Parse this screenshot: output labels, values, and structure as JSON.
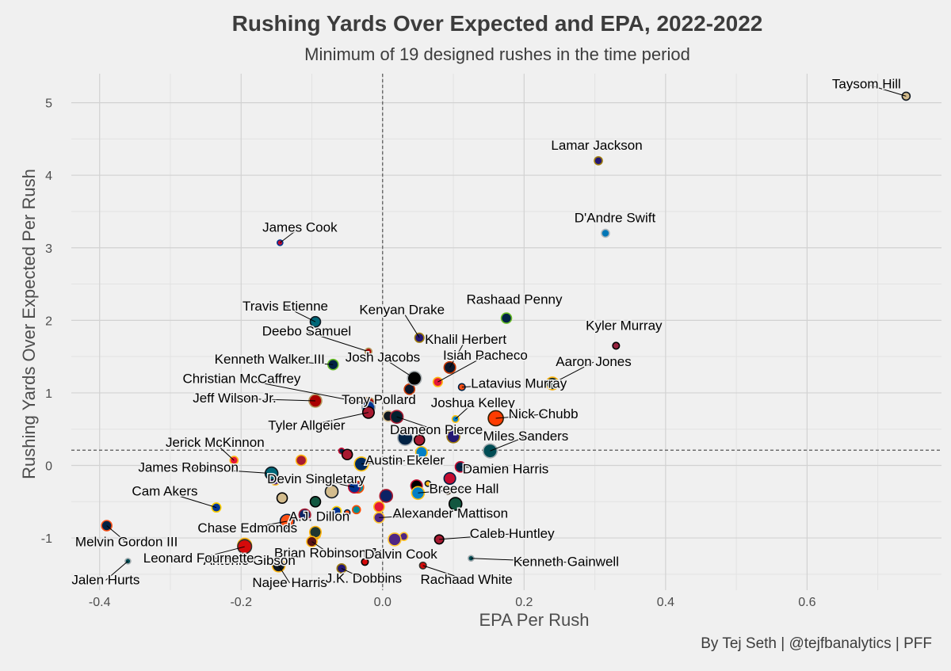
{
  "title": "Rushing Yards Over Expected and EPA, 2022-2022",
  "subtitle": "Minimum of 19 designed rushes in the time period",
  "caption": "By Tej Seth | @tejfbanalytics | PFF",
  "chart_data": {
    "type": "scatter",
    "xlabel": "EPA Per Rush",
    "ylabel": "Rushing Yards Over Expected Per Rush",
    "xlim": [
      -0.44,
      0.79
    ],
    "ylim": [
      -1.72,
      5.4
    ],
    "x_ticks": [
      -0.4,
      -0.2,
      0.0,
      0.2,
      0.4,
      0.6
    ],
    "x_tick_labels": [
      "-0.4",
      "-0.2",
      "0.0",
      "0.2",
      "0.4",
      "0.6"
    ],
    "y_ticks": [
      -1,
      0,
      1,
      2,
      3,
      4,
      5
    ],
    "y_tick_labels": [
      "-1",
      "0",
      "1",
      "2",
      "3",
      "4",
      "5"
    ],
    "grid": true,
    "mean_lines": {
      "x": 0.0,
      "y": 0.21
    },
    "labeled_points": [
      {
        "name": "Taysom Hill",
        "x": 0.74,
        "y": 5.09,
        "size": 4,
        "fill": "#D3BC8D",
        "stroke": "#101820",
        "lx": -50,
        "ly": -10
      },
      {
        "name": "Lamar Jackson",
        "x": 0.305,
        "y": 4.2,
        "size": 4,
        "fill": "#241773",
        "stroke": "#9E7C0C",
        "lx": -2,
        "ly": -14
      },
      {
        "name": "D'Andre Swift",
        "x": 0.315,
        "y": 3.2,
        "size": 4,
        "fill": "#0076B6",
        "stroke": "#B0B7BC",
        "lx": 12,
        "ly": -14
      },
      {
        "name": "James Cook",
        "x": -0.145,
        "y": 3.07,
        "size": 2,
        "fill": "#C60C30",
        "stroke": "#00338D",
        "lx": 25,
        "ly": -14
      },
      {
        "name": "Travis Etienne",
        "x": -0.095,
        "y": 1.98,
        "size": 6,
        "fill": "#006778",
        "stroke": "#101820",
        "lx": -38,
        "ly": -14
      },
      {
        "name": "Rashaad Penny",
        "x": 0.175,
        "y": 2.03,
        "size": 6,
        "fill": "#002244",
        "stroke": "#69BE28",
        "lx": 10,
        "ly": -18
      },
      {
        "name": "Kenyan Drake",
        "x": 0.052,
        "y": 1.76,
        "size": 5,
        "fill": "#241773",
        "stroke": "#9E7C0C",
        "lx": -22,
        "ly": -30
      },
      {
        "name": "Deebo Samuel",
        "x": -0.02,
        "y": 1.57,
        "size": 3,
        "fill": "#AA0000",
        "stroke": "#B3995D",
        "lx": -78,
        "ly": -20
      },
      {
        "name": "Khalil Herbert",
        "x": 0.095,
        "y": 1.35,
        "size": 7,
        "fill": "#0B162A",
        "stroke": "#C83803",
        "lx": 20,
        "ly": -30
      },
      {
        "name": "Kyler Murray",
        "x": 0.33,
        "y": 1.65,
        "size": 3,
        "fill": "#97233F",
        "stroke": "#000000",
        "lx": 10,
        "ly": -20
      },
      {
        "name": "Kenneth Walker III",
        "x": -0.07,
        "y": 1.39,
        "size": 6,
        "fill": "#002244",
        "stroke": "#69BE28",
        "lx": -80,
        "ly": -1
      },
      {
        "name": "Josh Jacobs",
        "x": 0.045,
        "y": 1.2,
        "size": 9,
        "fill": "#000000",
        "stroke": "#A5ACAF",
        "lx": -40,
        "ly": -21
      },
      {
        "name": "Isiah Pacheco",
        "x": 0.078,
        "y": 1.15,
        "size": 5,
        "fill": "#E31837",
        "stroke": "#FFB612",
        "lx": 60,
        "ly": -28
      },
      {
        "name": "Aaron Jones",
        "x": 0.24,
        "y": 1.13,
        "size": 8,
        "fill": "#203731",
        "stroke": "#FFB612",
        "lx": 52,
        "ly": -22
      },
      {
        "name": "Latavius Murray",
        "x": 0.112,
        "y": 1.08,
        "size": 3,
        "fill": "#FB4F14",
        "stroke": "#002244",
        "lx": 72,
        "ly": 1
      },
      {
        "name": "Christian McCaffrey",
        "x": -0.02,
        "y": 0.85,
        "size": 8,
        "fill": "#AA0000",
        "stroke": "#B3995D",
        "lx": -160,
        "ly": -26
      },
      {
        "name": "Jeff Wilson Jr.",
        "x": -0.095,
        "y": 0.89,
        "size": 8,
        "fill": "#AA0000",
        "stroke": "#B3995D",
        "lx": -102,
        "ly": 2
      },
      {
        "name": "Tony Pollard",
        "x": -0.02,
        "y": 0.8,
        "size": 8,
        "fill": "#003594",
        "stroke": "#869397",
        "lx": 13,
        "ly": -4
      },
      {
        "name": "Tyler Allgeier",
        "x": -0.02,
        "y": 0.73,
        "size": 7,
        "fill": "#A71930",
        "stroke": "#000000",
        "lx": -78,
        "ly": 22
      },
      {
        "name": "Joshua Kelley",
        "x": 0.103,
        "y": 0.64,
        "size": 3,
        "fill": "#0080C6",
        "stroke": "#FFC20E",
        "lx": 22,
        "ly": -15
      },
      {
        "name": "Nick Chubb",
        "x": 0.16,
        "y": 0.65,
        "size": 10,
        "fill": "#FF3C00",
        "stroke": "#311D00",
        "lx": 60,
        "ly": 0
      },
      {
        "name": "Dameon Pierce",
        "x": 0.02,
        "y": 0.67,
        "size": 8,
        "fill": "#03202F",
        "stroke": "#A71930",
        "lx": 50,
        "ly": 22
      },
      {
        "name": "Miles Sanders",
        "x": 0.152,
        "y": 0.2,
        "size": 9,
        "fill": "#004C54",
        "stroke": "#A5ACAF",
        "lx": 45,
        "ly": -13
      },
      {
        "name": "Jerick McKinnon",
        "x": -0.21,
        "y": 0.07,
        "size": 4,
        "fill": "#E31837",
        "stroke": "#FFB612",
        "lx": -24,
        "ly": -17
      },
      {
        "name": "Austin Ekeler",
        "x": -0.03,
        "y": 0.02,
        "size": 9,
        "fill": "#002A5E",
        "stroke": "#FFC20E",
        "lx": 55,
        "ly": 1
      },
      {
        "name": "Damien Harris",
        "x": 0.11,
        "y": -0.02,
        "size": 6,
        "fill": "#002244",
        "stroke": "#C60C30",
        "lx": 57,
        "ly": 8
      },
      {
        "name": "James Robinson",
        "x": -0.157,
        "y": -0.11,
        "size": 8,
        "fill": "#006778",
        "stroke": "#101820",
        "lx": -105,
        "ly": -2
      },
      {
        "name": "Devin Singletary",
        "x": -0.04,
        "y": -0.3,
        "size": 7,
        "fill": "#00338D",
        "stroke": "#C60C30",
        "lx": -48,
        "ly": -5
      },
      {
        "name": "Breece Hall",
        "x": 0.05,
        "y": -0.38,
        "size": 8,
        "fill": "#0080C6",
        "stroke": "#FFC20E",
        "lx": 58,
        "ly": 0
      },
      {
        "name": "Cam Akers",
        "x": -0.235,
        "y": -0.58,
        "size": 5,
        "fill": "#003594",
        "stroke": "#FFD100",
        "lx": -65,
        "ly": -15
      },
      {
        "name": "Alexander Mattison",
        "x": -0.005,
        "y": -0.72,
        "size": 6,
        "fill": "#4F2683",
        "stroke": "#FFC62F",
        "lx": 90,
        "ly": 0
      },
      {
        "name": "Melvin Gordon III",
        "x": -0.39,
        "y": -0.83,
        "size": 6,
        "fill": "#002244",
        "stroke": "#FB4F14",
        "lx": 25,
        "ly": 26
      },
      {
        "name": "Chase Edmonds",
        "x": -0.135,
        "y": -0.77,
        "size": 9,
        "fill": "#FB4F14",
        "stroke": "#002244",
        "lx": -50,
        "ly": 14
      },
      {
        "name": "A.J. Dillon",
        "x": -0.095,
        "y": -0.92,
        "size": 7,
        "fill": "#203731",
        "stroke": "#FFB612",
        "lx": 5,
        "ly": -14
      },
      {
        "name": "Caleb Huntley",
        "x": 0.08,
        "y": -1.02,
        "size": 5,
        "fill": "#A71930",
        "stroke": "#000000",
        "lx": 92,
        "ly": -2
      },
      {
        "name": "Brian Robinson Jr.",
        "x": -0.1,
        "y": -1.05,
        "size": 6,
        "fill": "#5A1414",
        "stroke": "#FFB612",
        "lx": 22,
        "ly": 20
      },
      {
        "name": "Dalvin Cook",
        "x": 0.017,
        "y": -1.02,
        "size": 8,
        "fill": "#4F2683",
        "stroke": "#FFC62F",
        "lx": 8,
        "ly": 24
      },
      {
        "name": "Antonio Gibson",
        "x": -0.195,
        "y": -1.1,
        "size": 9,
        "fill": "#5A1414",
        "stroke": "#FFB612",
        "lx": 6,
        "ly": 25
      },
      {
        "name": "Leonard Fournette",
        "x": -0.195,
        "y": -1.12,
        "size": 9,
        "fill": "#D50A0A",
        "stroke": "#34302B",
        "lx": -58,
        "ly": 20
      },
      {
        "name": "Kenneth Gainwell",
        "x": 0.125,
        "y": -1.28,
        "size": 2,
        "fill": "#004C54",
        "stroke": "#A5ACAF",
        "lx": 120,
        "ly": 10
      },
      {
        "name": "Jalen Hurts",
        "x": -0.36,
        "y": -1.32,
        "size": 2,
        "fill": "#004C54",
        "stroke": "#A5ACAF",
        "lx": -28,
        "ly": 29
      },
      {
        "name": "Najee Harris",
        "x": -0.147,
        "y": -1.38,
        "size": 8,
        "fill": "#101820",
        "stroke": "#FFB612",
        "lx": 14,
        "ly": 27
      },
      {
        "name": "J.K. Dobbins",
        "x": -0.058,
        "y": -1.42,
        "size": 5,
        "fill": "#241773",
        "stroke": "#9E7C0C",
        "lx": 28,
        "ly": 18
      },
      {
        "name": "Rachaad White",
        "x": 0.057,
        "y": -1.38,
        "size": 3,
        "fill": "#D50A0A",
        "stroke": "#34302B",
        "lx": 55,
        "ly": 23
      }
    ],
    "unlabeled_points": [
      {
        "x": -0.058,
        "y": 0.2,
        "size": 2,
        "fill": "#002244",
        "stroke": "#C60C30"
      },
      {
        "x": -0.05,
        "y": 0.15,
        "size": 6,
        "fill": "#A71930",
        "stroke": "#000000"
      },
      {
        "x": -0.115,
        "y": 0.07,
        "size": 6,
        "fill": "#A71930",
        "stroke": "#FFB612"
      },
      {
        "x": -0.152,
        "y": -0.2,
        "size": 6,
        "fill": "#4F2683",
        "stroke": "#FFC62F"
      },
      {
        "x": 0.008,
        "y": 0.68,
        "size": 6,
        "fill": "#101820",
        "stroke": "#D3BC8D"
      },
      {
        "x": 0.032,
        "y": 0.38,
        "size": 10,
        "fill": "#002244",
        "stroke": "#B0B7BC"
      },
      {
        "x": 0.052,
        "y": 0.35,
        "size": 6,
        "fill": "#A71930",
        "stroke": "#000000"
      },
      {
        "x": 0.055,
        "y": 0.18,
        "size": 7,
        "fill": "#0080C6",
        "stroke": "#FFC20E"
      },
      {
        "x": 0.1,
        "y": 0.4,
        "size": 8,
        "fill": "#241773",
        "stroke": "#9E7C0C"
      },
      {
        "x": 0.038,
        "y": 1.05,
        "size": 6,
        "fill": "#0B162A",
        "stroke": "#C83803"
      },
      {
        "x": 0.064,
        "y": -0.25,
        "size": 2,
        "fill": "#FFB612",
        "stroke": "#101820"
      },
      {
        "x": 0.095,
        "y": -0.18,
        "size": 7,
        "fill": "#C60C30",
        "stroke": "#002244"
      },
      {
        "x": 0.048,
        "y": -0.28,
        "size": 7,
        "fill": "#000000",
        "stroke": "#C60C30"
      },
      {
        "x": 0.092,
        "y": -0.35,
        "size": 3,
        "fill": "#FF3C00",
        "stroke": "#311D00"
      },
      {
        "x": 0.103,
        "y": -0.53,
        "size": 8,
        "fill": "#125740",
        "stroke": "#000000"
      },
      {
        "x": 0.005,
        "y": -0.42,
        "size": 8,
        "fill": "#0B2265",
        "stroke": "#A71930"
      },
      {
        "x": -0.035,
        "y": -0.3,
        "size": 7,
        "fill": "#008E97",
        "stroke": "#FC4C02"
      },
      {
        "x": -0.072,
        "y": -0.36,
        "size": 8,
        "fill": "#D3BC8D",
        "stroke": "#101820"
      },
      {
        "x": -0.142,
        "y": -0.45,
        "size": 6,
        "fill": "#D3BC8D",
        "stroke": "#000000"
      },
      {
        "x": -0.095,
        "y": -0.5,
        "size": 6,
        "fill": "#125740",
        "stroke": "#000000"
      },
      {
        "x": -0.11,
        "y": -0.68,
        "size": 7,
        "fill": "#0B2265",
        "stroke": "#A71930"
      },
      {
        "x": -0.065,
        "y": -0.63,
        "size": 5,
        "fill": "#003594",
        "stroke": "#FFD100"
      },
      {
        "x": -0.05,
        "y": -0.65,
        "size": 2,
        "fill": "#FB4F14",
        "stroke": "#002244"
      },
      {
        "x": -0.037,
        "y": -0.61,
        "size": 4,
        "fill": "#008E97",
        "stroke": "#FC4C02"
      },
      {
        "x": -0.005,
        "y": -0.57,
        "size": 6,
        "fill": "#E31837",
        "stroke": "#FFB612"
      },
      {
        "x": -0.095,
        "y": -0.95,
        "size": 6,
        "fill": "#203731",
        "stroke": "#FFB612"
      },
      {
        "x": 0.03,
        "y": -0.98,
        "size": 4,
        "fill": "#4F2683",
        "stroke": "#FFC62F"
      },
      {
        "x": -0.025,
        "y": -1.33,
        "size": 3,
        "fill": "#D50A0A",
        "stroke": "#000000"
      }
    ]
  }
}
